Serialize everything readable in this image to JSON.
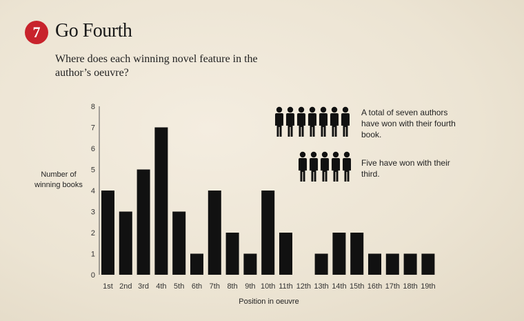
{
  "header": {
    "badge_number": "7",
    "title": "Go Fourth",
    "subtitle": "Where does each winning novel feature in the author’s oeuvre?"
  },
  "colors": {
    "badge": "#c8232c",
    "bars": "#111111",
    "background": "#ece4d3"
  },
  "annotations": [
    {
      "text": "A total of seven authors have won with their fourth book.",
      "people_count": 7,
      "icon": "person-icon"
    },
    {
      "text": "Five have won with their third.",
      "people_count": 5,
      "icon": "person-icon"
    }
  ],
  "chart_data": {
    "type": "bar",
    "categories": [
      "1st",
      "2nd",
      "3rd",
      "4th",
      "5th",
      "6th",
      "7th",
      "8th",
      "9th",
      "10th",
      "11th",
      "12th",
      "13th",
      "14th",
      "15th",
      "16th",
      "17th",
      "18th",
      "19th"
    ],
    "values": [
      4,
      3,
      5,
      7,
      3,
      1,
      4,
      2,
      1,
      4,
      2,
      0,
      1,
      2,
      2,
      1,
      1,
      1,
      1
    ],
    "xlabel": "Position in oeuvre",
    "ylabel": "Number of winning books",
    "ylim": [
      0,
      8
    ],
    "yticks": [
      0,
      1,
      2,
      3,
      4,
      5,
      6,
      7,
      8
    ],
    "grid": false
  }
}
